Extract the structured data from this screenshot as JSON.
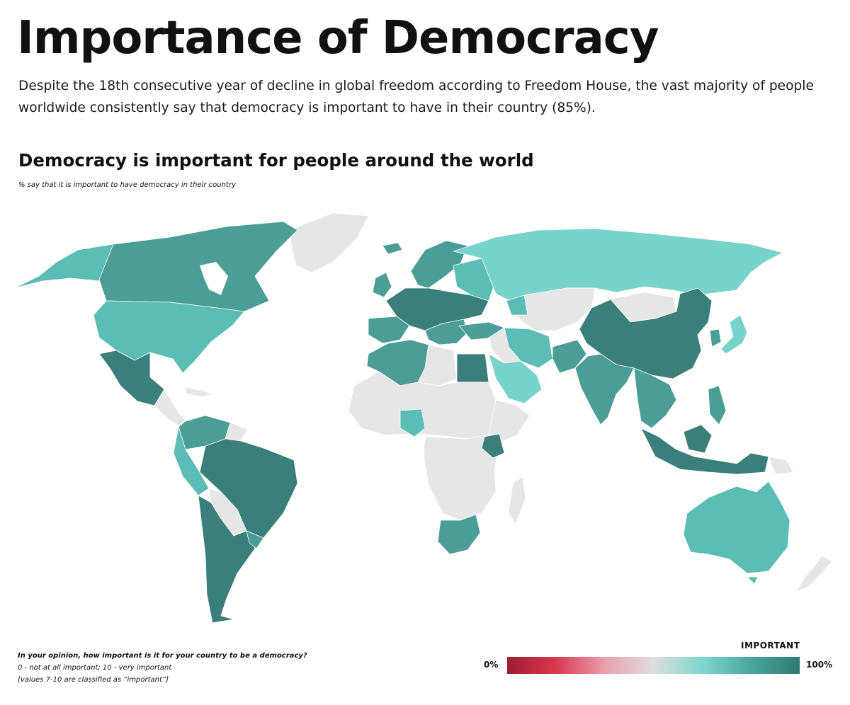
{
  "header": {
    "title": "Importance of Democracy",
    "intro": "Despite the 18th consecutive year of decline in global freedom according to Freedom House, the vast majority of people worldwide consistently say that democracy is important to have in their country (85%)."
  },
  "map": {
    "title": "Democracy is important for people around the world",
    "subtitle": "% say that it is important to have democracy in their country"
  },
  "footnote": {
    "question": "In your opinion, how important is it for your country to be a democracy?",
    "scale": "0 - not at all important; 10 - very important",
    "classification": "[values 7-10 are classified as “important”]"
  },
  "legend": {
    "title": "IMPORTANT",
    "min_label": "0%",
    "max_label": "100%",
    "gradient": [
      "#9e1b32",
      "#d9384f",
      "#e8a0ae",
      "#dedede",
      "#7fd6cc",
      "#4aa79d",
      "#2f7a72"
    ]
  },
  "colors": {
    "no_data": "#e6e6e6",
    "high": "#3a7f79",
    "mid_high": "#4b9d95",
    "mid": "#5bbdb3",
    "light": "#78d3ca",
    "border": "#ffffff"
  }
}
